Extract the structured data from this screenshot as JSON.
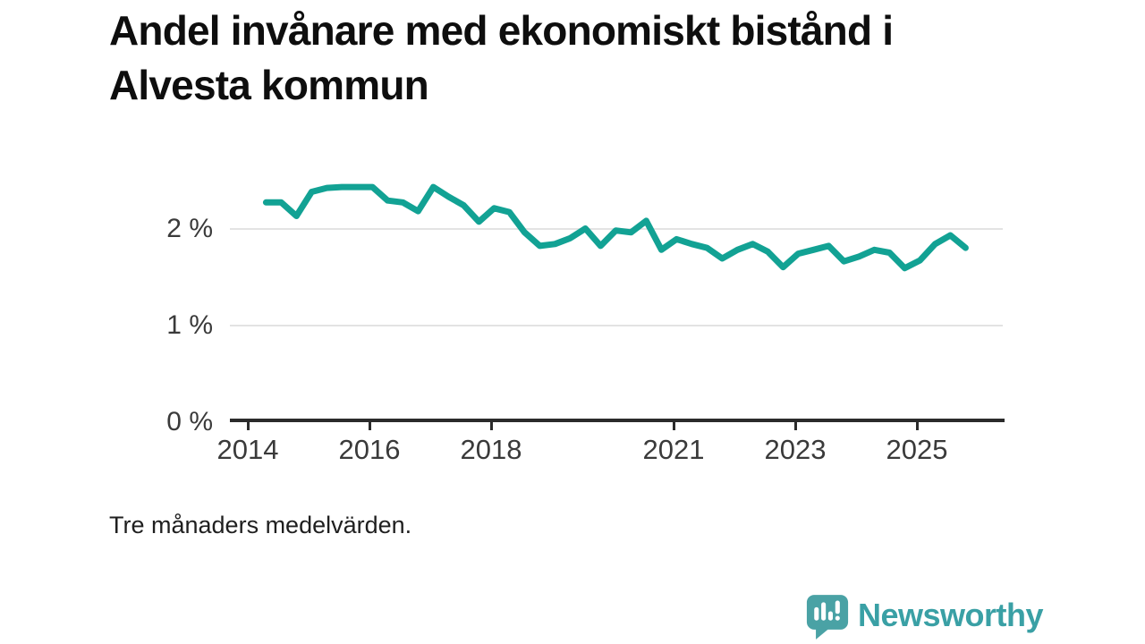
{
  "title": "Andel invånare med ekonomiskt bistånd i Alvesta kommun",
  "caption": "Tre månaders medelvärden.",
  "branding": {
    "logo_text": "Newsworthy",
    "logo_icon": "bar-chart-speech-bubble-icon"
  },
  "colors": {
    "line": "#12a294",
    "grid": "#e3e3e3",
    "axis": "#2b2b2b",
    "tick_label": "#3a3a3a",
    "title_text": "#0e0e0e",
    "brand": "#3aa0a5",
    "brand_icon": "#4aa2a5"
  },
  "chart_data": {
    "type": "line",
    "title": "Andel invånare med ekonomiskt bistånd i Alvesta kommun",
    "xlabel": "",
    "ylabel": "",
    "grid": "horizontal",
    "legend": "none",
    "xlim": [
      2013.7,
      2026.4
    ],
    "ylim": [
      0,
      2.6
    ],
    "y_ticks": [
      {
        "label": "2 %",
        "value": 2
      },
      {
        "label": "1 %",
        "value": 1
      },
      {
        "label": "0 %",
        "value": 0
      }
    ],
    "x_ticks": [
      {
        "label": "2014",
        "year": 2014
      },
      {
        "label": "2016",
        "year": 2016
      },
      {
        "label": "2018",
        "year": 2018
      },
      {
        "label": "2021",
        "year": 2021
      },
      {
        "label": "2023",
        "year": 2023
      },
      {
        "label": "2025",
        "year": 2025
      }
    ],
    "x": [
      2014.3,
      2014.55,
      2014.8,
      2015.05,
      2015.3,
      2015.55,
      2015.8,
      2016.05,
      2016.3,
      2016.55,
      2016.8,
      2017.05,
      2017.3,
      2017.55,
      2017.8,
      2018.05,
      2018.3,
      2018.55,
      2018.8,
      2019.05,
      2019.3,
      2019.55,
      2019.8,
      2020.05,
      2020.3,
      2020.55,
      2020.8,
      2021.05,
      2021.3,
      2021.55,
      2021.8,
      2022.05,
      2022.3,
      2022.55,
      2022.8,
      2023.05,
      2023.3,
      2023.55,
      2023.8,
      2024.05,
      2024.3,
      2024.55,
      2024.8,
      2025.05,
      2025.3,
      2025.55,
      2025.8
    ],
    "series": [
      {
        "name": "Alvesta kommun",
        "unit": "%",
        "values": [
          2.27,
          2.27,
          2.13,
          2.38,
          2.42,
          2.43,
          2.43,
          2.43,
          2.29,
          2.27,
          2.18,
          2.43,
          2.33,
          2.24,
          2.07,
          2.21,
          2.17,
          1.96,
          1.82,
          1.84,
          1.9,
          2.0,
          1.82,
          1.98,
          1.96,
          2.08,
          1.78,
          1.89,
          1.84,
          1.8,
          1.69,
          1.78,
          1.84,
          1.76,
          1.6,
          1.74,
          1.78,
          1.82,
          1.66,
          1.71,
          1.78,
          1.75,
          1.59,
          1.67,
          1.84,
          1.93,
          1.8
        ]
      }
    ]
  }
}
